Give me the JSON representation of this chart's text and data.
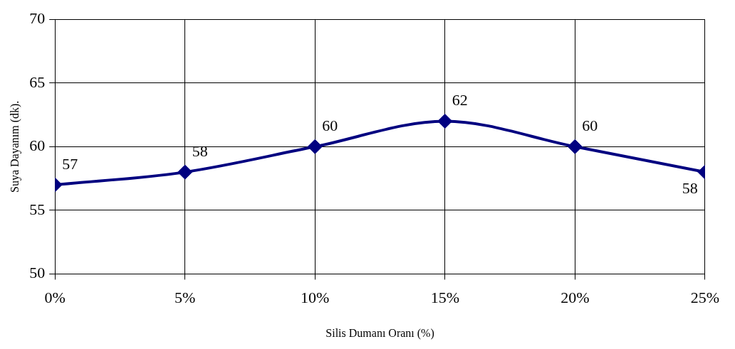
{
  "chart_data": {
    "type": "line",
    "xlabel": "Silis Dumanı Oranı (%)",
    "ylabel": "Suya Dayanım (dk).",
    "x": [
      0,
      5,
      10,
      15,
      20,
      25
    ],
    "values": [
      57,
      58,
      60,
      62,
      60,
      58
    ],
    "color": "#000080",
    "marker": "diamond",
    "line_style": "solid",
    "data_labels": true,
    "grid": true,
    "legend": false,
    "xlim": [
      0,
      25
    ],
    "xticks": [
      {
        "value": 0,
        "label": "0%"
      },
      {
        "value": 5,
        "label": "5%"
      },
      {
        "value": 10,
        "label": "10%"
      },
      {
        "value": 15,
        "label": "15%"
      },
      {
        "value": 20,
        "label": "20%"
      },
      {
        "value": 25,
        "label": "25%"
      }
    ],
    "ylim": [
      50,
      70
    ],
    "yticks": [
      50,
      55,
      60,
      65,
      70
    ]
  }
}
